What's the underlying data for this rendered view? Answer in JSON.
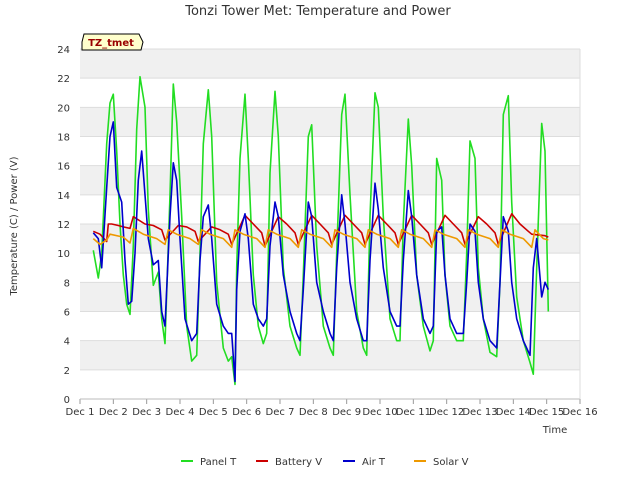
{
  "chart_data": {
    "type": "line",
    "title": "Tonzi Tower Met: Temperature and Power",
    "tag": "TZ_tmet",
    "xlabel": "Time",
    "ylabel": "Temperature (C) / Power (V)",
    "ylim": [
      0,
      24
    ],
    "yticks": [
      0,
      2,
      4,
      6,
      8,
      10,
      12,
      14,
      16,
      18,
      20,
      22,
      24
    ],
    "xlim": [
      0,
      15
    ],
    "xticks": [
      {
        "value": 0,
        "label": "Dec 1"
      },
      {
        "value": 1,
        "label": "Dec 2"
      },
      {
        "value": 2,
        "label": "Dec 3"
      },
      {
        "value": 3,
        "label": "Dec 4"
      },
      {
        "value": 4,
        "label": "Dec 5"
      },
      {
        "value": 5,
        "label": "Dec 6"
      },
      {
        "value": 6,
        "label": "Dec 7"
      },
      {
        "value": 7,
        "label": "Dec 8"
      },
      {
        "value": 8,
        "label": "Dec 9"
      },
      {
        "value": 9,
        "label": "Dec 10"
      },
      {
        "value": 10,
        "label": "Dec 11"
      },
      {
        "value": 11,
        "label": "Dec 12"
      },
      {
        "value": 12,
        "label": "Dec 13"
      },
      {
        "value": 13,
        "label": "Dec 14"
      },
      {
        "value": 14,
        "label": "Dec 15"
      },
      {
        "value": 15,
        "label": "Dec 16"
      }
    ],
    "grid": true,
    "legend": "bottom",
    "series": [
      {
        "name": "Panel T",
        "color": "#22dd22",
        "x": [
          0.4,
          0.55,
          0.65,
          0.8,
          0.9,
          1.0,
          1.1,
          1.2,
          1.3,
          1.4,
          1.5,
          1.6,
          1.7,
          1.8,
          1.95,
          2.05,
          2.2,
          2.35,
          2.45,
          2.55,
          2.7,
          2.8,
          2.9,
          3.05,
          3.2,
          3.35,
          3.5,
          3.6,
          3.7,
          3.85,
          3.95,
          4.1,
          4.3,
          4.45,
          4.55,
          4.65,
          4.7,
          4.8,
          4.95,
          5.05,
          5.2,
          5.35,
          5.5,
          5.6,
          5.7,
          5.85,
          5.95,
          6.1,
          6.3,
          6.5,
          6.6,
          6.7,
          6.85,
          6.95,
          7.1,
          7.3,
          7.5,
          7.6,
          7.7,
          7.85,
          7.95,
          8.1,
          8.3,
          8.5,
          8.6,
          8.7,
          8.85,
          8.95,
          9.1,
          9.3,
          9.5,
          9.6,
          9.7,
          9.85,
          9.95,
          10.1,
          10.3,
          10.5,
          10.6,
          10.7,
          10.85,
          10.95,
          11.1,
          11.3,
          11.5,
          11.6,
          11.7,
          11.85,
          11.95,
          12.1,
          12.3,
          12.5,
          12.6,
          12.7,
          12.85,
          12.95,
          13.1,
          13.3,
          13.5,
          13.6,
          13.7,
          13.85,
          13.95,
          14.05
        ],
        "y": [
          10.2,
          8.3,
          10.0,
          17.5,
          20.3,
          20.9,
          17.0,
          12.0,
          8.5,
          6.5,
          5.8,
          10.5,
          18.5,
          22.1,
          20.0,
          13.0,
          7.8,
          8.7,
          5.5,
          3.8,
          14.0,
          21.6,
          19.0,
          12.5,
          5.0,
          2.6,
          3.0,
          10.0,
          17.5,
          21.2,
          18.0,
          8.0,
          3.5,
          2.6,
          2.9,
          1.0,
          9.0,
          16.5,
          20.9,
          16.5,
          8.5,
          5.0,
          3.8,
          4.5,
          15.5,
          21.1,
          18.0,
          9.0,
          5.0,
          3.5,
          3.0,
          8.5,
          18.0,
          18.8,
          10.5,
          5.0,
          3.5,
          3.0,
          10.0,
          19.5,
          20.9,
          14.0,
          6.0,
          3.5,
          3.0,
          12.5,
          21.0,
          20.0,
          12.5,
          5.5,
          4.0,
          4.0,
          12.0,
          19.2,
          16.0,
          8.5,
          5.0,
          3.3,
          4.0,
          16.5,
          15.0,
          8.5,
          5.0,
          4.0,
          4.0,
          10.0,
          17.7,
          16.5,
          9.0,
          5.5,
          3.2,
          2.9,
          8.0,
          19.5,
          20.8,
          13.5,
          7.0,
          4.0,
          2.5,
          1.7,
          9.0,
          18.9,
          17.0,
          6.0
        ]
      },
      {
        "name": "Battery V",
        "color": "#cc0000",
        "x": [
          0.4,
          0.6,
          0.8,
          0.85,
          0.95,
          1.15,
          1.3,
          1.5,
          1.6,
          1.95,
          2.2,
          2.45,
          2.55,
          2.95,
          3.2,
          3.45,
          3.55,
          3.95,
          4.2,
          4.45,
          4.55,
          4.95,
          5.2,
          5.45,
          5.55,
          5.95,
          6.2,
          6.45,
          6.55,
          6.95,
          7.2,
          7.45,
          7.55,
          7.95,
          8.2,
          8.45,
          8.55,
          8.95,
          9.2,
          9.45,
          9.55,
          9.95,
          10.2,
          10.45,
          10.55,
          10.95,
          11.2,
          11.45,
          11.55,
          11.95,
          12.2,
          12.45,
          12.55,
          12.95,
          13.2,
          13.45,
          13.55,
          13.95,
          14.05
        ],
        "y": [
          11.5,
          11.3,
          10.8,
          12.0,
          12.0,
          11.9,
          11.8,
          11.7,
          12.5,
          12.0,
          11.9,
          11.6,
          10.9,
          11.9,
          11.8,
          11.5,
          10.8,
          11.8,
          11.6,
          11.3,
          10.6,
          12.6,
          12.0,
          11.4,
          10.5,
          12.5,
          12.0,
          11.4,
          10.6,
          12.6,
          12.0,
          11.4,
          10.6,
          12.6,
          12.0,
          11.4,
          10.6,
          12.6,
          12.0,
          11.4,
          10.6,
          12.6,
          12.0,
          11.4,
          10.6,
          12.6,
          12.0,
          11.4,
          10.6,
          12.5,
          12.0,
          11.4,
          10.6,
          12.7,
          12.0,
          11.5,
          11.3,
          11.2,
          11.1
        ]
      },
      {
        "name": "Air T",
        "color": "#0000cc",
        "x": [
          0.4,
          0.55,
          0.65,
          0.8,
          0.9,
          1.0,
          1.1,
          1.25,
          1.35,
          1.45,
          1.55,
          1.65,
          1.75,
          1.85,
          1.95,
          2.05,
          2.2,
          2.35,
          2.45,
          2.55,
          2.7,
          2.8,
          2.9,
          3.0,
          3.15,
          3.35,
          3.5,
          3.6,
          3.7,
          3.85,
          3.95,
          4.1,
          4.3,
          4.45,
          4.55,
          4.65,
          4.7,
          4.8,
          4.95,
          5.05,
          5.2,
          5.35,
          5.5,
          5.6,
          5.7,
          5.85,
          5.95,
          6.1,
          6.3,
          6.5,
          6.6,
          6.7,
          6.85,
          6.95,
          7.1,
          7.3,
          7.5,
          7.6,
          7.7,
          7.85,
          7.95,
          8.1,
          8.3,
          8.5,
          8.6,
          8.7,
          8.85,
          8.95,
          9.1,
          9.3,
          9.5,
          9.6,
          9.7,
          9.85,
          9.95,
          10.1,
          10.3,
          10.5,
          10.6,
          10.7,
          10.85,
          10.95,
          11.1,
          11.3,
          11.5,
          11.6,
          11.7,
          11.85,
          11.95,
          12.1,
          12.3,
          12.5,
          12.6,
          12.7,
          12.85,
          12.95,
          13.1,
          13.3,
          13.5,
          13.6,
          13.7,
          13.85,
          13.95,
          14.05
        ],
        "y": [
          11.4,
          11.0,
          9.0,
          14.5,
          18.0,
          19.0,
          14.5,
          13.5,
          9.5,
          6.5,
          6.7,
          10.0,
          15.0,
          17.0,
          14.0,
          11.0,
          9.2,
          9.5,
          6.0,
          5.0,
          12.5,
          16.2,
          15.0,
          11.0,
          5.5,
          4.0,
          4.5,
          9.5,
          12.5,
          13.3,
          11.0,
          6.5,
          5.0,
          4.5,
          4.5,
          1.2,
          7.5,
          11.5,
          12.7,
          11.0,
          6.5,
          5.5,
          5.0,
          5.5,
          10.5,
          13.5,
          12.5,
          8.5,
          6.0,
          4.5,
          4.0,
          7.5,
          13.5,
          12.5,
          8.0,
          6.0,
          4.5,
          4.0,
          9.0,
          14.0,
          12.0,
          8.0,
          5.5,
          4.0,
          4.0,
          9.5,
          14.8,
          13.0,
          9.0,
          6.0,
          5.0,
          5.0,
          9.5,
          14.3,
          12.5,
          8.5,
          5.5,
          4.5,
          5.0,
          11.5,
          11.8,
          8.5,
          5.5,
          4.5,
          4.5,
          8.0,
          12.0,
          11.5,
          8.0,
          5.5,
          4.0,
          3.5,
          8.0,
          12.5,
          11.5,
          8.0,
          5.5,
          4.0,
          3.0,
          9.0,
          11.0,
          7.0,
          8.0,
          7.5
        ]
      },
      {
        "name": "Solar V",
        "color": "#ee9900",
        "x": [
          0.4,
          0.6,
          0.8,
          0.9,
          1.3,
          1.5,
          1.6,
          1.9,
          2.3,
          2.55,
          2.65,
          2.9,
          3.3,
          3.55,
          3.65,
          3.9,
          4.3,
          4.55,
          4.65,
          4.9,
          5.3,
          5.55,
          5.65,
          5.9,
          6.3,
          6.55,
          6.65,
          6.9,
          7.3,
          7.55,
          7.65,
          7.9,
          8.3,
          8.55,
          8.65,
          8.9,
          9.3,
          9.55,
          9.65,
          9.9,
          10.3,
          10.55,
          10.65,
          10.9,
          11.3,
          11.55,
          11.65,
          11.9,
          12.3,
          12.55,
          12.65,
          12.9,
          13.3,
          13.55,
          13.65,
          13.9,
          14.05
        ],
        "y": [
          11.0,
          10.6,
          10.9,
          11.3,
          11.1,
          10.7,
          11.7,
          11.3,
          11.0,
          10.6,
          11.6,
          11.3,
          11.0,
          10.6,
          11.6,
          11.3,
          11.0,
          10.4,
          11.6,
          11.3,
          11.0,
          10.4,
          11.6,
          11.3,
          11.0,
          10.4,
          11.6,
          11.3,
          11.0,
          10.4,
          11.6,
          11.3,
          11.0,
          10.4,
          11.6,
          11.3,
          11.0,
          10.4,
          11.6,
          11.3,
          11.0,
          10.4,
          11.6,
          11.3,
          11.0,
          10.4,
          11.6,
          11.3,
          11.0,
          10.4,
          11.6,
          11.3,
          11.0,
          10.4,
          11.6,
          11.0,
          10.9
        ]
      }
    ]
  }
}
